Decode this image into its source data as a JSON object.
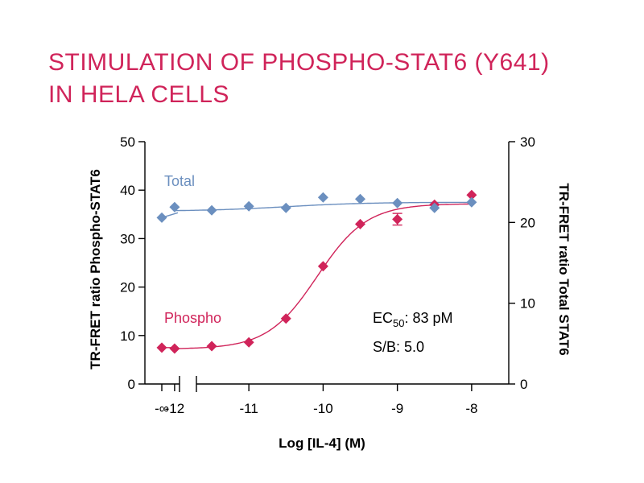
{
  "title": {
    "line1": "STIMULATION OF PHOSPHO-STAT6 (Y641)",
    "line2": "IN HELA CELLS"
  },
  "colors": {
    "title": "#d0245a",
    "phospho": "#d0245a",
    "total": "#6b8fbf",
    "axis": "#000000"
  },
  "chart_data": {
    "type": "scatter",
    "title": "STIMULATION OF PHOSPHO-STAT6 (Y641) IN HELA CELLS",
    "xlabel": "Log [IL-4] (M)",
    "ylabel_left": "TR-FRET ratio Phospho-STAT6",
    "ylabel_right": "TR-FRET ratio Total STAT6",
    "xlim": [
      -12.4,
      -7.5
    ],
    "ylim_left": [
      0,
      50
    ],
    "ylim_right": [
      0,
      30
    ],
    "x_tick_labels": [
      "-∞",
      "-12",
      "-11",
      "-10",
      "-9",
      "-8"
    ],
    "x_ticks": [
      -12,
      -11,
      -10,
      -9,
      -8
    ],
    "y_ticks_left": [
      0,
      10,
      20,
      30,
      40,
      50
    ],
    "y_ticks_right": [
      0,
      10,
      20,
      30
    ],
    "zero_dose_label": "-∞",
    "series": [
      {
        "name": "Phospho",
        "axis": "left",
        "color": "#d0245a",
        "zero_dose_value": 7.5,
        "x": [
          -12,
          -11.5,
          -11,
          -10.5,
          -10,
          -9.5,
          -9,
          -8.5,
          -8
        ],
        "y": [
          7.3,
          7.8,
          8.6,
          13.5,
          24.3,
          33.0,
          34.0,
          37.0,
          39.0
        ],
        "errors": [
          0,
          0,
          0,
          0,
          0,
          0,
          1.2,
          0,
          0
        ],
        "fit": {
          "model": "4PL",
          "bottom": 7.2,
          "top": 37.2,
          "log_ec50": -10.08,
          "hill": 1.3
        }
      },
      {
        "name": "Total",
        "axis": "right",
        "color": "#6b8fbf",
        "zero_dose_value": 20.6,
        "x": [
          -12,
          -11.5,
          -11,
          -10.5,
          -10,
          -9.5,
          -9,
          -8.5,
          -8
        ],
        "y": [
          21.9,
          21.5,
          22.0,
          21.8,
          23.1,
          22.9,
          22.4,
          21.8,
          22.5
        ],
        "errors": [
          0,
          0,
          0,
          0,
          0,
          0,
          0,
          0,
          0
        ],
        "fit": {
          "model": "4PL",
          "bottom": 21.4,
          "top": 22.5,
          "log_ec50": -10.5,
          "hill": 0.8
        }
      }
    ],
    "annotations": {
      "ec50_prefix": "EC",
      "ec50_sub": "50",
      "ec50_value": ": 83 pM",
      "sb": "S/B: 5.0"
    }
  }
}
